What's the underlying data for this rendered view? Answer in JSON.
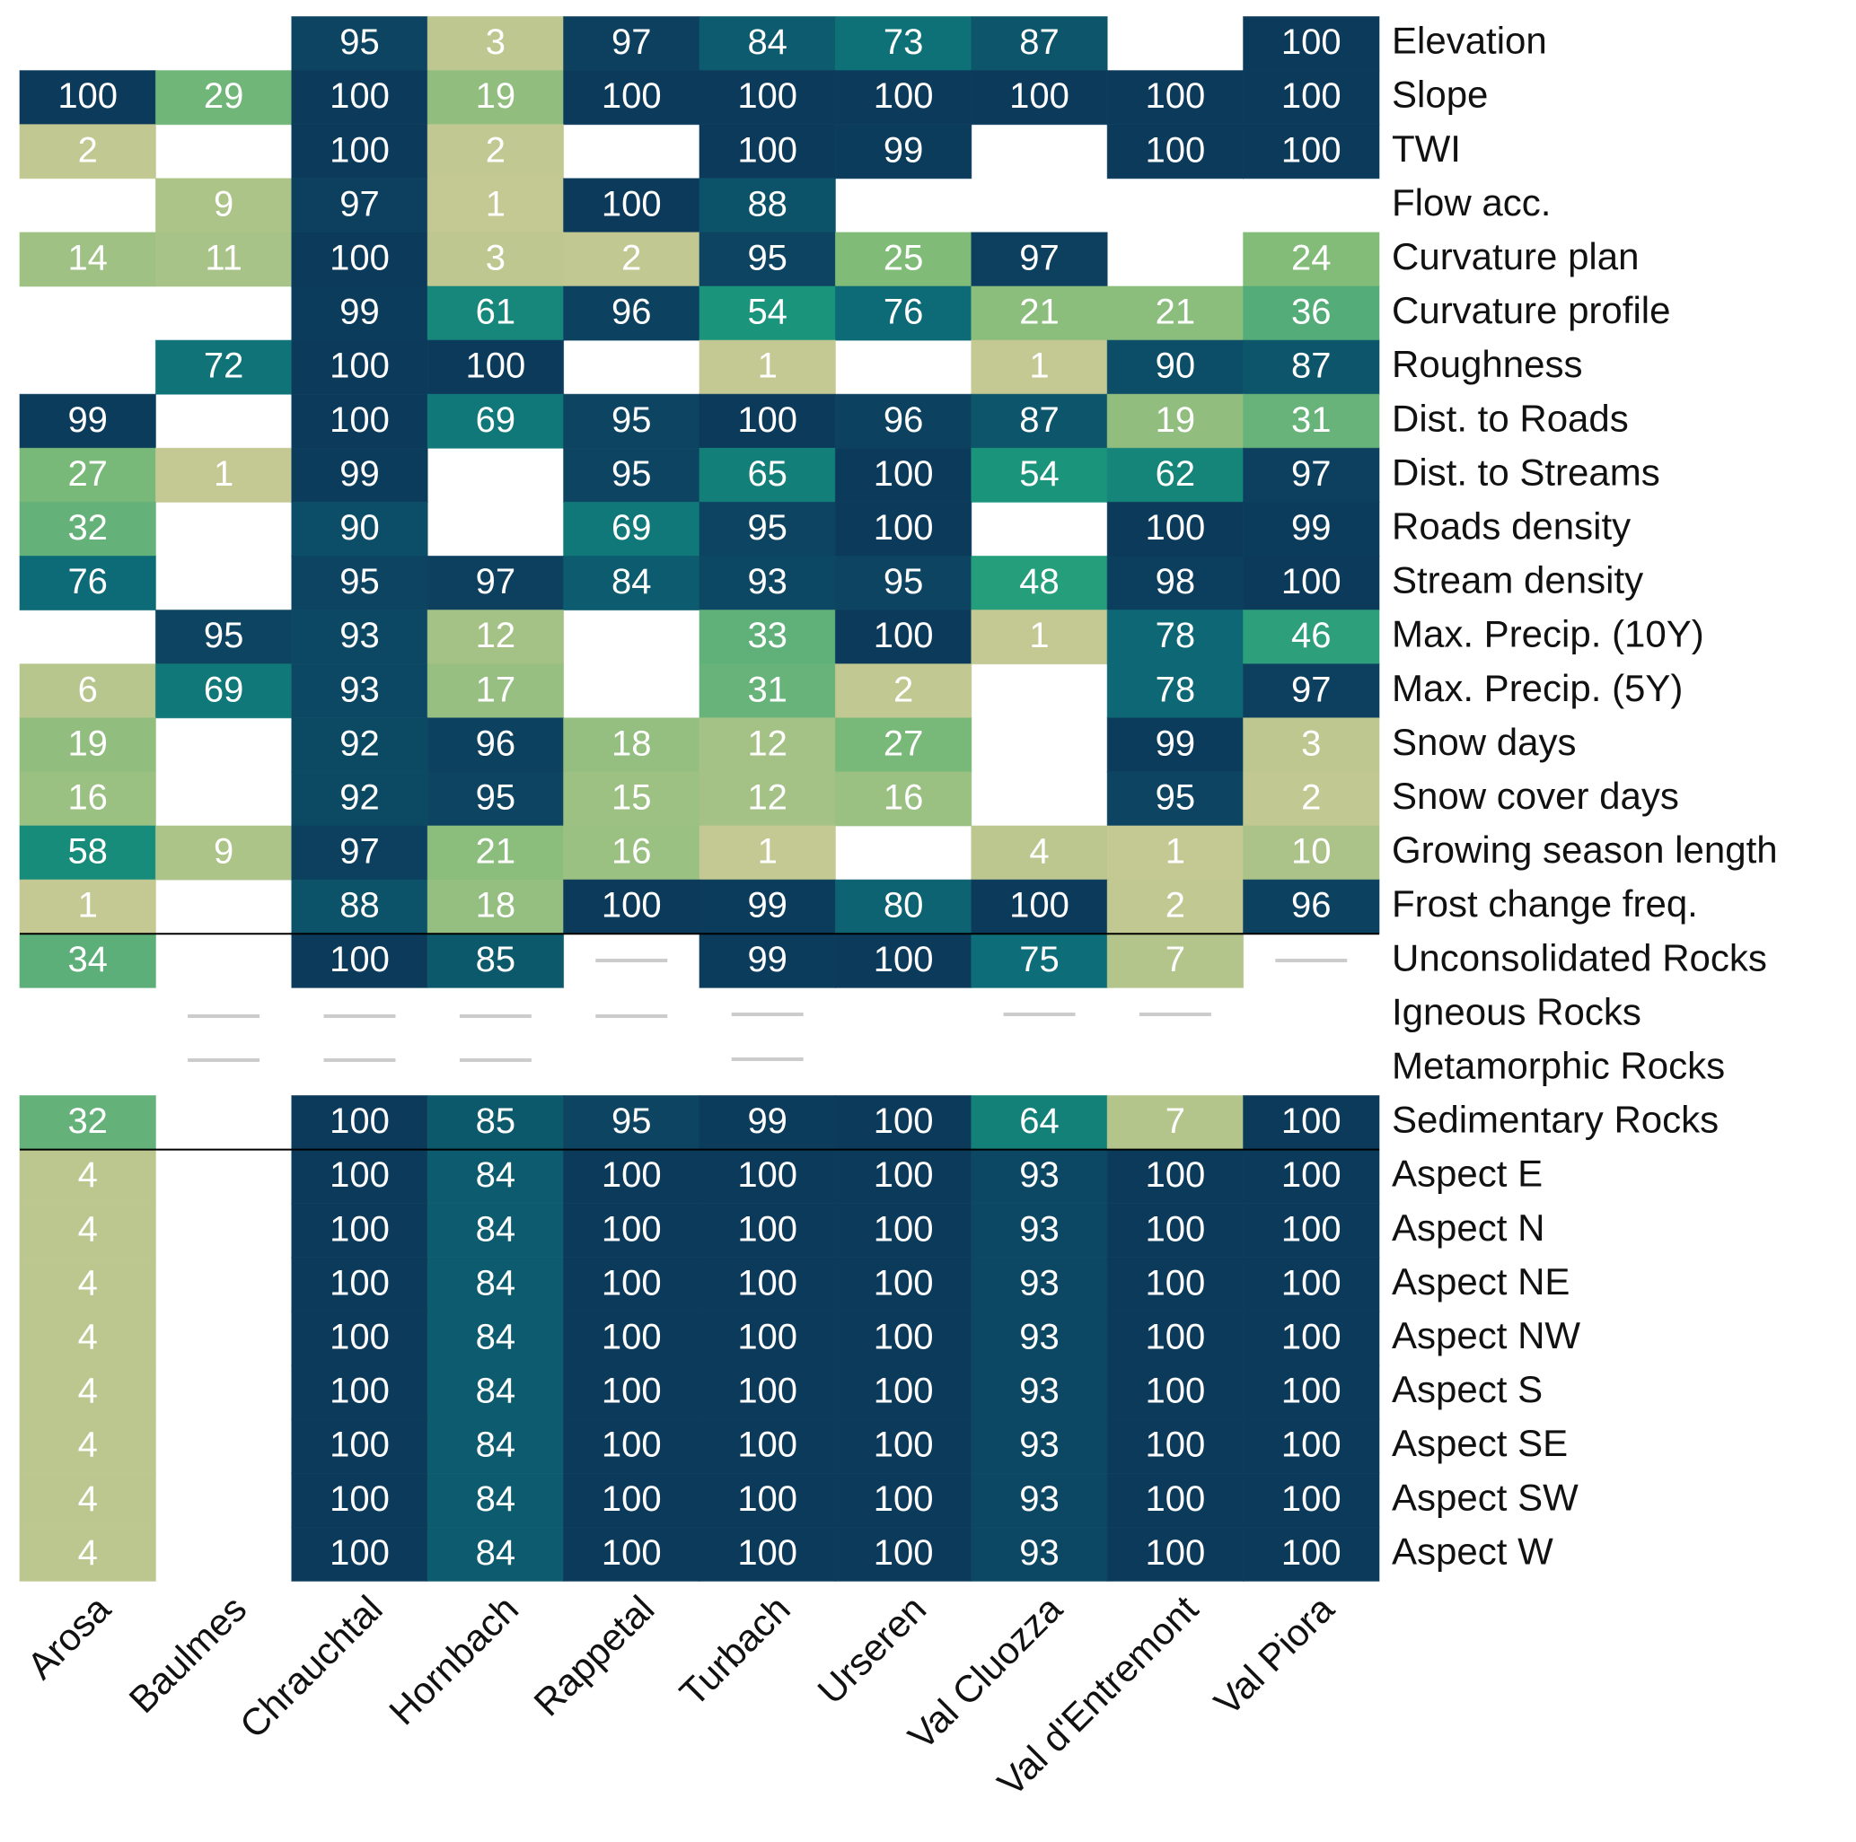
{
  "chart_data": {
    "type": "heatmap",
    "x_categories": [
      "Arosa",
      "Baulmes",
      "Chrauchtal",
      "Hornbach",
      "Rappetal",
      "Turbach",
      "Urseren",
      "Val Cluozza",
      "Val d'Entremont",
      "Val Piora"
    ],
    "y_categories": [
      "Elevation",
      "Slope",
      "TWI",
      "Flow acc.",
      "Curvature plan",
      "Curvature profile",
      "Roughness",
      "Dist. to Roads",
      "Dist. to Streams",
      "Roads density",
      "Stream density",
      "Max. Precip. (10Y)",
      "Max. Precip. (5Y)",
      "Snow days",
      "Snow cover days",
      "Growing season length",
      "Frost change freq.",
      "Unconsolidated Rocks",
      "Igneous Rocks",
      "Metamorphic Rocks",
      "Sedimentary Rocks",
      "Aspect E",
      "Aspect N",
      "Aspect NE",
      "Aspect NW",
      "Aspect S",
      "Aspect SE",
      "Aspect SW",
      "Aspect W"
    ],
    "values": [
      [
        null,
        null,
        95,
        3,
        97,
        84,
        73,
        87,
        null,
        100
      ],
      [
        100,
        29,
        100,
        19,
        100,
        100,
        100,
        100,
        100,
        100
      ],
      [
        2,
        null,
        100,
        2,
        null,
        100,
        99,
        null,
        100,
        100
      ],
      [
        null,
        9,
        97,
        1,
        100,
        88,
        null,
        null,
        null,
        null
      ],
      [
        14,
        11,
        100,
        3,
        2,
        95,
        25,
        97,
        null,
        24
      ],
      [
        null,
        null,
        99,
        61,
        96,
        54,
        76,
        21,
        21,
        36
      ],
      [
        null,
        72,
        100,
        100,
        null,
        1,
        null,
        1,
        90,
        87
      ],
      [
        99,
        null,
        100,
        69,
        95,
        100,
        96,
        87,
        19,
        31
      ],
      [
        27,
        1,
        99,
        null,
        95,
        65,
        100,
        54,
        62,
        97
      ],
      [
        32,
        null,
        90,
        null,
        69,
        95,
        100,
        null,
        100,
        99
      ],
      [
        76,
        null,
        95,
        97,
        84,
        93,
        95,
        48,
        98,
        100
      ],
      [
        null,
        95,
        93,
        12,
        null,
        33,
        100,
        1,
        78,
        46
      ],
      [
        6,
        69,
        93,
        17,
        null,
        31,
        2,
        null,
        78,
        97
      ],
      [
        19,
        null,
        92,
        96,
        18,
        12,
        27,
        null,
        99,
        3
      ],
      [
        16,
        null,
        92,
        95,
        15,
        12,
        16,
        null,
        95,
        2
      ],
      [
        58,
        9,
        97,
        21,
        16,
        1,
        null,
        4,
        1,
        10
      ],
      [
        1,
        null,
        88,
        18,
        100,
        99,
        80,
        100,
        2,
        96
      ],
      [
        34,
        null,
        100,
        85,
        null,
        99,
        100,
        75,
        7,
        null
      ],
      [
        null,
        null,
        null,
        null,
        null,
        null,
        null,
        null,
        null,
        null
      ],
      [
        null,
        null,
        null,
        null,
        null,
        null,
        null,
        null,
        null,
        null
      ],
      [
        32,
        null,
        100,
        85,
        95,
        99,
        100,
        64,
        7,
        100
      ],
      [
        4,
        null,
        100,
        84,
        100,
        100,
        100,
        93,
        100,
        100
      ],
      [
        4,
        null,
        100,
        84,
        100,
        100,
        100,
        93,
        100,
        100
      ],
      [
        4,
        null,
        100,
        84,
        100,
        100,
        100,
        93,
        100,
        100
      ],
      [
        4,
        null,
        100,
        84,
        100,
        100,
        100,
        93,
        100,
        100
      ],
      [
        4,
        null,
        100,
        84,
        100,
        100,
        100,
        93,
        100,
        100
      ],
      [
        4,
        null,
        100,
        84,
        100,
        100,
        100,
        93,
        100,
        100
      ],
      [
        4,
        null,
        100,
        84,
        100,
        100,
        100,
        93,
        100,
        100
      ],
      [
        4,
        null,
        100,
        84,
        100,
        100,
        100,
        93,
        100,
        100
      ]
    ],
    "zlim": [
      0,
      100
    ],
    "colors": [
      "#c7c993",
      "#80bb78",
      "#1d9b7b",
      "#0d6d78",
      "#0c3a5b"
    ]
  }
}
